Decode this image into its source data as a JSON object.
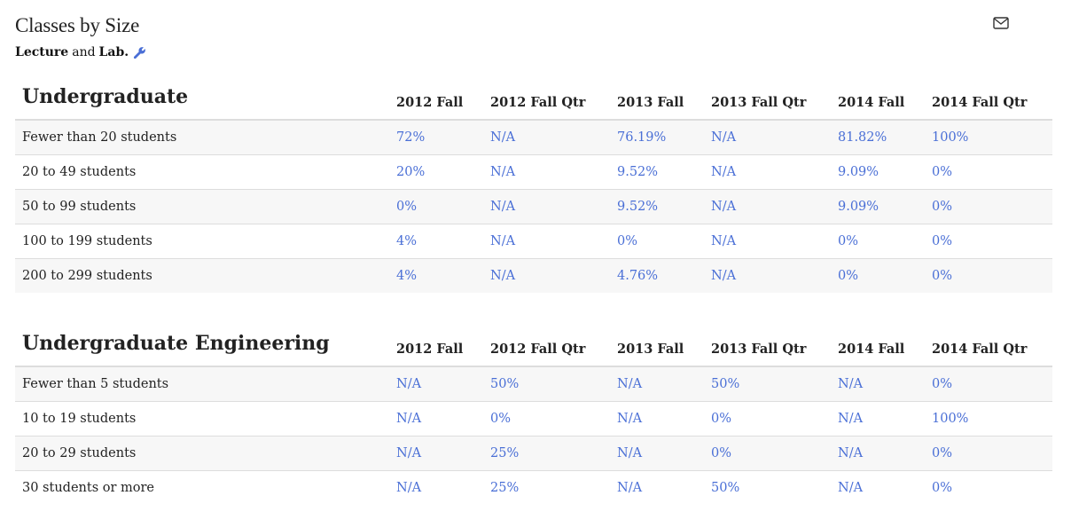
{
  "header": {
    "title": "Classes by Size",
    "subtitle_part1": "Lecture",
    "subtitle_part2": "and",
    "subtitle_part3": "Lab.",
    "wrench_icon": "wrench-icon",
    "mail_icon": "envelope-icon"
  },
  "colors": {
    "link": "#4a6fd6",
    "stripe": "#f7f7f7",
    "border": "#dddddd"
  },
  "columns": [
    "2012 Fall",
    "2012 Fall Qtr",
    "2013 Fall",
    "2013 Fall Qtr",
    "2014 Fall",
    "2014 Fall Qtr"
  ],
  "undergraduate": {
    "title": "Undergraduate",
    "rows": [
      {
        "label": "Fewer than 20 students",
        "values": [
          "72%",
          "N/A",
          "76.19%",
          "N/A",
          "81.82%",
          "100%"
        ]
      },
      {
        "label": "20 to 49 students",
        "values": [
          "20%",
          "N/A",
          "9.52%",
          "N/A",
          "9.09%",
          "0%"
        ]
      },
      {
        "label": "50 to 99 students",
        "values": [
          "0%",
          "N/A",
          "9.52%",
          "N/A",
          "9.09%",
          "0%"
        ]
      },
      {
        "label": "100 to 199 students",
        "values": [
          "4%",
          "N/A",
          "0%",
          "N/A",
          "0%",
          "0%"
        ]
      },
      {
        "label": "200 to 299 students",
        "values": [
          "4%",
          "N/A",
          "4.76%",
          "N/A",
          "0%",
          "0%"
        ]
      }
    ]
  },
  "engineering": {
    "title": "Undergraduate Engineering",
    "rows": [
      {
        "label": "Fewer than 5 students",
        "values": [
          "N/A",
          "50%",
          "N/A",
          "50%",
          "N/A",
          "0%"
        ]
      },
      {
        "label": "10 to 19 students",
        "values": [
          "N/A",
          "0%",
          "N/A",
          "0%",
          "N/A",
          "100%"
        ]
      },
      {
        "label": "20 to 29 students",
        "values": [
          "N/A",
          "25%",
          "N/A",
          "0%",
          "N/A",
          "0%"
        ]
      },
      {
        "label": "30 students or more",
        "values": [
          "N/A",
          "25%",
          "N/A",
          "50%",
          "N/A",
          "0%"
        ]
      }
    ]
  }
}
